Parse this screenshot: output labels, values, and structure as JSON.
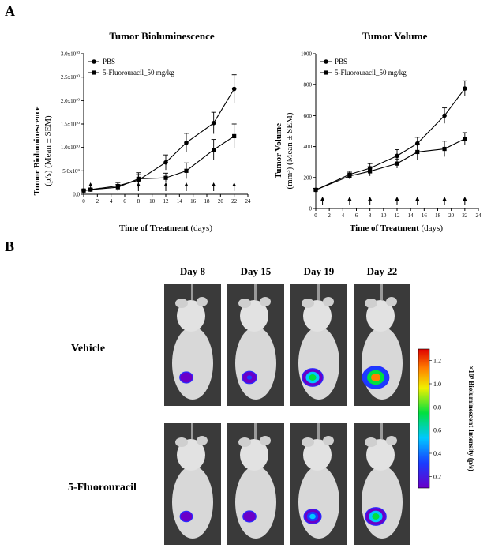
{
  "figure": {
    "panel_a_letter": "A",
    "panel_b_letter": "B",
    "colors": {
      "line": "#000000",
      "background": "#ffffff",
      "frame": "#3a3a3a"
    }
  },
  "chart_data": [
    {
      "type": "line",
      "title": "Tumor Bioluminescence",
      "ylabel_line1": "Tumor Bioluminescence",
      "ylabel_line2": "(p/s) (Mean ± SEM)",
      "xlabel_bold": "Time of Treatment",
      "xlabel_rest": " (days)",
      "x_ticks": [
        0,
        2,
        4,
        6,
        8,
        10,
        12,
        14,
        16,
        18,
        20,
        22,
        24
      ],
      "y_ticks": [
        0,
        5000000000,
        10000000000,
        15000000000,
        20000000000,
        25000000000,
        30000000000
      ],
      "y_tick_labels": [
        "0.0",
        "5.0x10⁹",
        "1.0x10¹⁰",
        "1.5x10¹⁰",
        "2.0x10¹⁰",
        "2.5x10¹⁰",
        "3.0x10¹⁰"
      ],
      "xlim": [
        0,
        24
      ],
      "ylim": [
        0,
        30000000000
      ],
      "treatment_days": [
        1,
        5,
        8,
        12,
        15,
        19,
        22
      ],
      "legend_position": "top-left",
      "series": [
        {
          "name": "PBS",
          "marker": "circle",
          "x": [
            0,
            1,
            5,
            8,
            12,
            15,
            19,
            22
          ],
          "y": [
            800000000,
            1000000000,
            1800000000,
            3000000000,
            6800000000,
            11000000000,
            15200000000,
            22500000000
          ],
          "err": [
            200000000,
            200000000,
            700000000,
            1600000000,
            1600000000,
            2000000000,
            2300000000,
            3000000000
          ]
        },
        {
          "name": "5-Fluorouracil_50 mg/kg",
          "marker": "square",
          "x": [
            0,
            1,
            5,
            8,
            12,
            15,
            19,
            22
          ],
          "y": [
            800000000,
            1000000000,
            1500000000,
            3300000000,
            3500000000,
            5000000000,
            9500000000,
            12400000000
          ],
          "err": [
            200000000,
            200000000,
            600000000,
            900000000,
            1000000000,
            1700000000,
            2200000000,
            2600000000
          ]
        }
      ]
    },
    {
      "type": "line",
      "title": "Tumor Volume",
      "ylabel_line1": "Tumor Volume",
      "ylabel_line2": "(mm³) (Mean ± SEM)",
      "xlabel_bold": "Time of Treatment",
      "xlabel_rest": " (days)",
      "x_ticks": [
        0,
        2,
        4,
        6,
        8,
        10,
        12,
        14,
        16,
        18,
        20,
        22,
        24
      ],
      "y_ticks": [
        0,
        200,
        400,
        600,
        800,
        1000
      ],
      "y_tick_labels": [
        "0",
        "200",
        "400",
        "600",
        "800",
        "1000"
      ],
      "xlim": [
        0,
        24
      ],
      "ylim": [
        0,
        1000
      ],
      "treatment_days": [
        1,
        5,
        8,
        12,
        15,
        19,
        22
      ],
      "legend_position": "top-left",
      "series": [
        {
          "name": "PBS",
          "marker": "circle",
          "x": [
            0,
            5,
            8,
            12,
            15,
            19,
            22
          ],
          "y": [
            120,
            220,
            260,
            340,
            420,
            600,
            775
          ],
          "err": [
            10,
            20,
            30,
            40,
            40,
            50,
            50
          ]
        },
        {
          "name": "5-Fluorouracil_50 mg/kg",
          "marker": "square",
          "x": [
            0,
            5,
            8,
            12,
            15,
            19,
            22
          ],
          "y": [
            120,
            210,
            240,
            290,
            365,
            385,
            450
          ],
          "err": [
            10,
            20,
            30,
            30,
            50,
            50,
            40
          ]
        }
      ]
    }
  ],
  "imaging": {
    "days": [
      "Day 8",
      "Day 15",
      "Day 19",
      "Day 22"
    ],
    "rows": [
      {
        "label": "Vehicle",
        "signal_levels": [
          0.25,
          0.35,
          0.8,
          1.2
        ]
      },
      {
        "label": "5-Fluorouracil",
        "signal_levels": [
          0.2,
          0.25,
          0.55,
          0.8
        ]
      }
    ],
    "colorbar": {
      "label": "×10⁹ Bioluminescent Intensity (p/s)",
      "ticks": [
        "0.2",
        "0.4",
        "0.6",
        "0.8",
        "1.0",
        "1.2"
      ],
      "values": [
        0.2,
        0.4,
        0.6,
        0.8,
        1.0,
        1.2
      ],
      "min": 0.1,
      "max": 1.3
    }
  }
}
